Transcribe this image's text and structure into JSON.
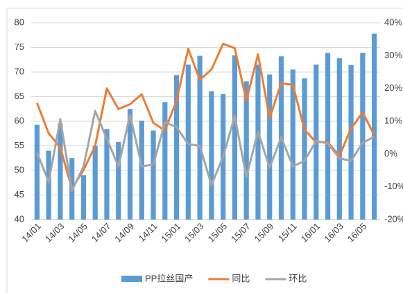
{
  "chart_data": {
    "type": "bar-line",
    "categories": [
      "14/01",
      null,
      "14/03",
      null,
      "14/05",
      null,
      "14/07",
      null,
      "14/09",
      null,
      "14/11",
      null,
      "15/01",
      null,
      "15/03",
      null,
      "15/05",
      null,
      "15/07",
      null,
      "15/09",
      null,
      "15/11",
      null,
      "16/01",
      null,
      "16/03",
      null,
      "16/05",
      null
    ],
    "series": [
      {
        "name": "PP拉丝国产",
        "type": "bar",
        "color": "#5b9bd5",
        "values": [
          59.3,
          54,
          59.5,
          52.5,
          49,
          55,
          58.4,
          55.8,
          62.5,
          60.1,
          58.1,
          63.9,
          69.4,
          71.5,
          73.3,
          66.1,
          65.5,
          73.4,
          68.1,
          71.5,
          69.5,
          73.2,
          70.5,
          68.7,
          71.5,
          73.9,
          72.8,
          71.4,
          73.9,
          77.8
        ]
      },
      {
        "name": "同比",
        "type": "line",
        "axis": "y2",
        "color": "#ed7d31",
        "values": [
          15.6,
          6.3,
          2,
          -10.6,
          -4.9,
          2.5,
          20,
          13.7,
          15.2,
          18.2,
          9.5,
          7.2,
          16.3,
          32.1,
          22.6,
          25.8,
          33.6,
          32.3,
          16.3,
          30.4,
          11,
          21.6,
          21.1,
          7.4,
          3.6,
          3.6,
          -0.6,
          7.8,
          12.7,
          5.7
        ]
      },
      {
        "name": "环比",
        "type": "line",
        "axis": "y2",
        "color": "#a5a5a5",
        "values": [
          0.4,
          -8.5,
          10.6,
          -11.2,
          -3.8,
          13.1,
          4.7,
          -3.8,
          12,
          -3.8,
          -3.2,
          9.7,
          8.2,
          3,
          2.5,
          -9.5,
          -0.8,
          11.6,
          -7,
          6.8,
          -4.2,
          5.1,
          -3.8,
          -2.1,
          4,
          3.2,
          -1.3,
          -2.1,
          3.4,
          5.3
        ]
      }
    ],
    "ylim": [
      40,
      80
    ],
    "yticks": [
      40,
      45,
      50,
      55,
      60,
      65,
      70,
      75,
      80
    ],
    "y2lim": [
      -20,
      40
    ],
    "y2ticks": [
      {
        "value": -20,
        "label": "-20%"
      },
      {
        "value": -10,
        "label": "-10%"
      },
      {
        "value": 0,
        "label": "0%"
      },
      {
        "value": 10,
        "label": "10%"
      },
      {
        "value": 20,
        "label": "20%"
      },
      {
        "value": 30,
        "label": "30%"
      },
      {
        "value": 40,
        "label": "40%"
      }
    ],
    "grid": true,
    "legend": "bottom"
  }
}
